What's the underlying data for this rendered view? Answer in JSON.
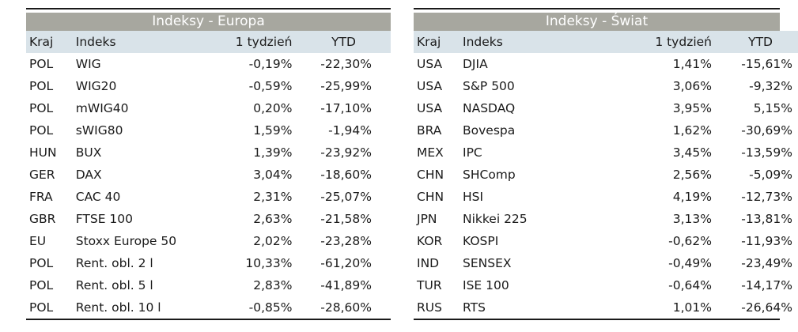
{
  "europe": {
    "title": "Indeksy - Europa",
    "headers": {
      "country": "Kraj",
      "index": "Indeks",
      "week": "1 tydzień",
      "ytd": "YTD"
    },
    "rows": [
      {
        "country": "POL",
        "index": "WIG",
        "week": "-0,19%",
        "ytd": "-22,30%"
      },
      {
        "country": "POL",
        "index": "WIG20",
        "week": "-0,59%",
        "ytd": "-25,99%"
      },
      {
        "country": "POL",
        "index": "mWIG40",
        "week": "0,20%",
        "ytd": "-17,10%"
      },
      {
        "country": "POL",
        "index": "sWIG80",
        "week": "1,59%",
        "ytd": "-1,94%"
      },
      {
        "country": "HUN",
        "index": "BUX",
        "week": "1,39%",
        "ytd": "-23,92%"
      },
      {
        "country": "GER",
        "index": "DAX",
        "week": "3,04%",
        "ytd": "-18,60%"
      },
      {
        "country": "FRA",
        "index": "CAC 40",
        "week": "2,31%",
        "ytd": "-25,07%"
      },
      {
        "country": "GBR",
        "index": "FTSE 100",
        "week": "2,63%",
        "ytd": "-21,58%"
      },
      {
        "country": "EU",
        "index": "Stoxx Europe 50",
        "week": "2,02%",
        "ytd": "-23,28%"
      },
      {
        "country": "POL",
        "index": "Rent. obl. 2 l",
        "week": "10,33%",
        "ytd": "-61,20%"
      },
      {
        "country": "POL",
        "index": "Rent. obl. 5 l",
        "week": "2,83%",
        "ytd": "-41,89%"
      },
      {
        "country": "POL",
        "index": "Rent. obl. 10 l",
        "week": "-0,85%",
        "ytd": "-28,60%"
      }
    ]
  },
  "world": {
    "title": "Indeksy - Świat",
    "headers": {
      "country": "Kraj",
      "index": "Indeks",
      "week": "1 tydzień",
      "ytd": "YTD"
    },
    "rows": [
      {
        "country": "USA",
        "index": "DJIA",
        "week": "1,41%",
        "ytd": "-15,61%"
      },
      {
        "country": "USA",
        "index": "S&P 500",
        "week": "3,06%",
        "ytd": "-9,32%"
      },
      {
        "country": "USA",
        "index": "NASDAQ",
        "week": "3,95%",
        "ytd": "5,15%"
      },
      {
        "country": "BRA",
        "index": "Bovespa",
        "week": "1,62%",
        "ytd": "-30,69%"
      },
      {
        "country": "MEX",
        "index": "IPC",
        "week": "3,45%",
        "ytd": "-13,59%"
      },
      {
        "country": "CHN",
        "index": "SHComp",
        "week": "2,56%",
        "ytd": "-5,09%"
      },
      {
        "country": "CHN",
        "index": "HSI",
        "week": "4,19%",
        "ytd": "-12,73%"
      },
      {
        "country": "JPN",
        "index": "Nikkei 225",
        "week": "3,13%",
        "ytd": "-13,81%"
      },
      {
        "country": "KOR",
        "index": "KOSPI",
        "week": "-0,62%",
        "ytd": "-11,93%"
      },
      {
        "country": "IND",
        "index": "SENSEX",
        "week": "-0,49%",
        "ytd": "-23,49%"
      },
      {
        "country": "TUR",
        "index": "ISE 100",
        "week": "-0,64%",
        "ytd": "-14,17%"
      },
      {
        "country": "RUS",
        "index": "RTS",
        "week": "1,01%",
        "ytd": "-26,64%"
      }
    ]
  }
}
